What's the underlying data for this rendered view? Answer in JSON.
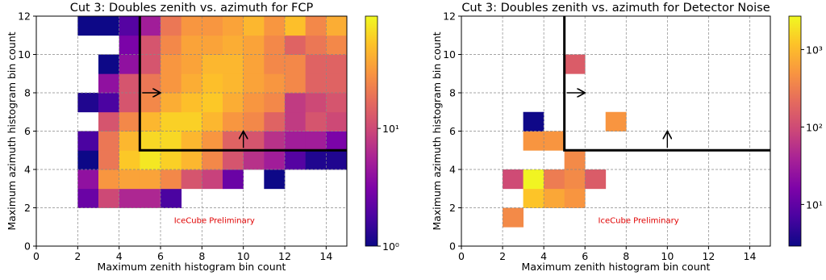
{
  "chart_data": [
    {
      "type": "heatmap",
      "title": "Cut 3: Doubles zenith vs. azimuth for FCP",
      "xlabel": "Maximum zenith histogram bin count",
      "ylabel": "Maximum azimuth histogram bin count",
      "xlim": [
        0,
        15
      ],
      "ylim": [
        0,
        12
      ],
      "xticks": [
        0,
        2,
        4,
        6,
        8,
        10,
        12,
        14
      ],
      "yticks": [
        0,
        2,
        4,
        6,
        8,
        10,
        12
      ],
      "grid": true,
      "colormap": "plasma",
      "color_scale": "log",
      "clim": [
        1,
        90
      ],
      "cticks": [
        {
          "value": 1,
          "label": "10⁰"
        },
        {
          "value": 10,
          "label": "10¹"
        }
      ],
      "cut": [
        5,
        5
      ],
      "annotation": "IceCube Preliminary",
      "xbins": [
        2,
        3,
        4,
        5,
        6,
        7,
        8,
        9,
        10,
        11,
        12,
        13,
        14,
        15
      ],
      "ybins": [
        2,
        3,
        4,
        5,
        6,
        7,
        8,
        9,
        10,
        11,
        12
      ],
      "z": [
        [
          2.5,
          10,
          6,
          6,
          1.8,
          null,
          null,
          null,
          null,
          null,
          null,
          null,
          null
        ],
        [
          4,
          30,
          35,
          35,
          25,
          12,
          9,
          2.5,
          null,
          1,
          null,
          null,
          null
        ],
        [
          1,
          20,
          55,
          75,
          60,
          45,
          25,
          12,
          7,
          5,
          2,
          1.2,
          1.2
        ],
        [
          1.8,
          20,
          45,
          65,
          65,
          45,
          30,
          15,
          12,
          7,
          5,
          5,
          3
        ],
        [
          null,
          12,
          25,
          45,
          60,
          60,
          45,
          30,
          25,
          15,
          8,
          12,
          10
        ],
        [
          1.2,
          1.8,
          12,
          25,
          40,
          50,
          55,
          40,
          30,
          25,
          8,
          10,
          12
        ],
        [
          null,
          4,
          12,
          20,
          30,
          40,
          50,
          45,
          35,
          30,
          25,
          15,
          15
        ],
        [
          null,
          1,
          4,
          12,
          30,
          35,
          45,
          45,
          35,
          25,
          25,
          15,
          15
        ],
        [
          null,
          null,
          3,
          12,
          25,
          35,
          35,
          40,
          35,
          25,
          15,
          20,
          25
        ],
        [
          1,
          1,
          2,
          5,
          20,
          30,
          30,
          35,
          45,
          30,
          50,
          25,
          40
        ]
      ]
    },
    {
      "type": "heatmap",
      "title": "Cut 3: Doubles zenith vs. azimuth for Detector Noise",
      "xlabel": "Maximum zenith histogram bin count",
      "ylabel": "Maximum azimuth histogram bin count",
      "xlim": [
        0,
        15
      ],
      "ylim": [
        0,
        12
      ],
      "xticks": [
        0,
        2,
        4,
        6,
        8,
        10,
        12,
        14
      ],
      "yticks": [
        0,
        2,
        4,
        6,
        8,
        10,
        12
      ],
      "grid": true,
      "colormap": "plasma",
      "color_scale": "log",
      "clim": [
        2.9,
        2700
      ],
      "cticks": [
        {
          "value": 10,
          "label": "10¹"
        },
        {
          "value": 100,
          "label": "10²"
        },
        {
          "value": 1000,
          "label": "10³"
        }
      ],
      "cut": [
        5,
        5
      ],
      "annotation": "IceCube Preliminary",
      "xbins": [
        2,
        3,
        4,
        5,
        6,
        7,
        8
      ],
      "ybins": [
        1,
        2,
        3,
        4,
        5,
        6,
        7,
        8,
        9,
        10
      ],
      "z": [
        [
          400,
          null,
          null,
          null,
          null,
          null
        ],
        [
          null,
          1200,
          700,
          500,
          null,
          null
        ],
        [
          100,
          2500,
          300,
          400,
          150,
          null
        ],
        [
          null,
          null,
          null,
          400,
          null,
          null
        ],
        [
          null,
          500,
          500,
          null,
          null,
          null
        ],
        [
          null,
          3,
          null,
          null,
          null,
          500
        ],
        [
          null,
          null,
          null,
          null,
          null,
          null
        ],
        [
          null,
          null,
          null,
          null,
          null,
          null
        ],
        [
          null,
          null,
          null,
          150,
          null,
          null
        ]
      ]
    }
  ]
}
